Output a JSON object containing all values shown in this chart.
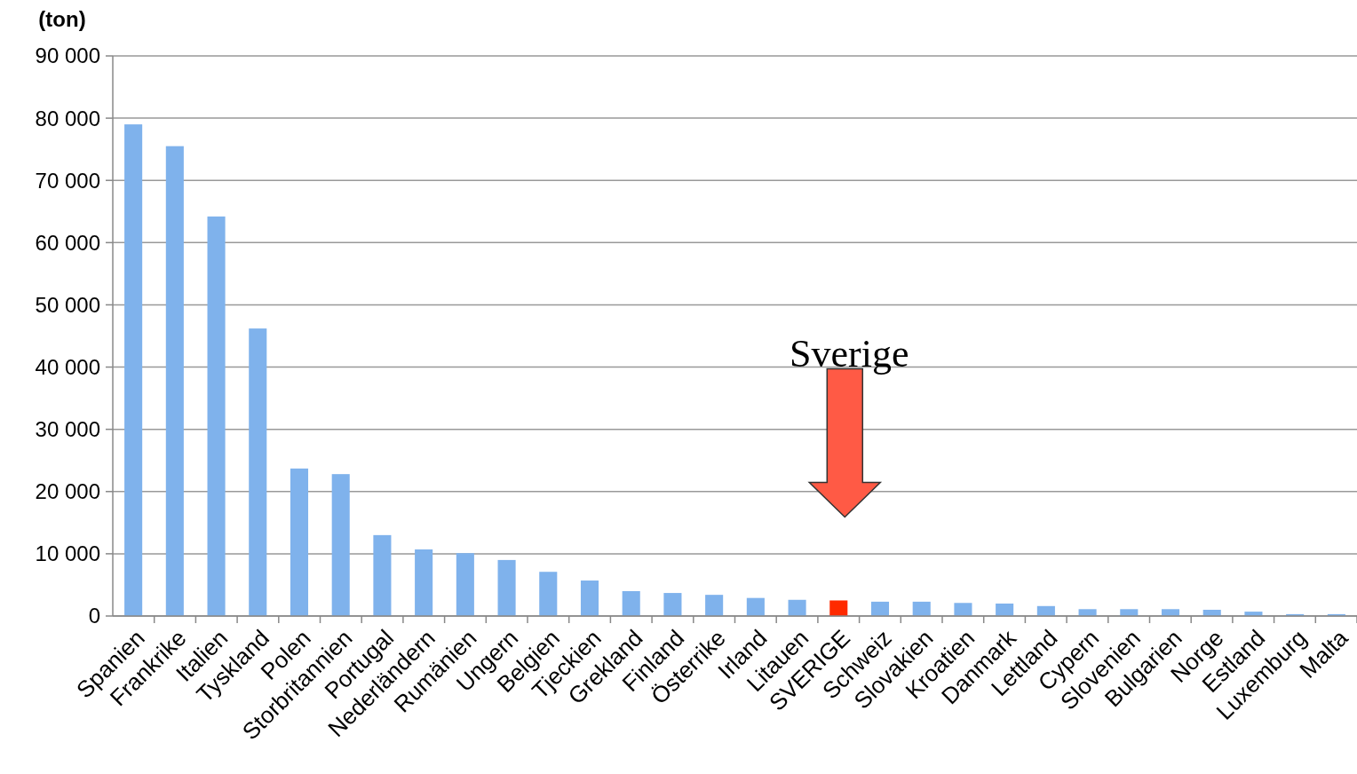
{
  "chart_data": {
    "type": "bar",
    "ylabel": "(ton)",
    "categories": [
      "Spanien",
      "Frankrike",
      "Italien",
      "Tyskland",
      "Polen",
      "Storbritannien",
      "Portugal",
      "Nederländern",
      "Rumänien",
      "Ungern",
      "Belgien",
      "Tjeckien",
      "Grekland",
      "Finland",
      "Österrike",
      "Irland",
      "Litauen",
      "SVERIGE",
      "Schweiz",
      "Slovakien",
      "Kroatien",
      "Danmark",
      "Lettland",
      "Cypern",
      "Slovenien",
      "Bulgarien",
      "Norge",
      "Estland",
      "Luxemburg",
      "Malta"
    ],
    "values": [
      79000,
      75500,
      64200,
      46200,
      23700,
      22800,
      13000,
      10700,
      10100,
      9000,
      7100,
      5700,
      4000,
      3700,
      3400,
      2900,
      2600,
      2500,
      2300,
      2300,
      2100,
      2000,
      1600,
      1100,
      1100,
      1100,
      1000,
      700,
      300,
      300
    ],
    "colors": [
      "#7fb2ec",
      "#7fb2ec",
      "#7fb2ec",
      "#7fb2ec",
      "#7fb2ec",
      "#7fb2ec",
      "#7fb2ec",
      "#7fb2ec",
      "#7fb2ec",
      "#7fb2ec",
      "#7fb2ec",
      "#7fb2ec",
      "#7fb2ec",
      "#7fb2ec",
      "#7fb2ec",
      "#7fb2ec",
      "#7fb2ec",
      "#ff2a00",
      "#7fb2ec",
      "#7fb2ec",
      "#7fb2ec",
      "#7fb2ec",
      "#7fb2ec",
      "#7fb2ec",
      "#7fb2ec",
      "#7fb2ec",
      "#7fb2ec",
      "#7fb2ec",
      "#7fb2ec",
      "#7fb2ec"
    ],
    "ylim": [
      0,
      90000
    ],
    "yticks": [
      0,
      {
        "value": 10000,
        "label": "10 000"
      },
      {
        "value": 20000,
        "label": "20 000"
      },
      {
        "value": 30000,
        "label": "30 000"
      },
      {
        "value": 40000,
        "label": "40 000"
      },
      {
        "value": 50000,
        "label": "50 000"
      },
      {
        "value": 60000,
        "label": "60 000"
      },
      {
        "value": 70000,
        "label": "70 000"
      },
      {
        "value": 80000,
        "label": "80 000"
      },
      {
        "value": 90000,
        "label": "90 000"
      }
    ],
    "grid": "y",
    "annotations": [
      "Sverige"
    ]
  }
}
